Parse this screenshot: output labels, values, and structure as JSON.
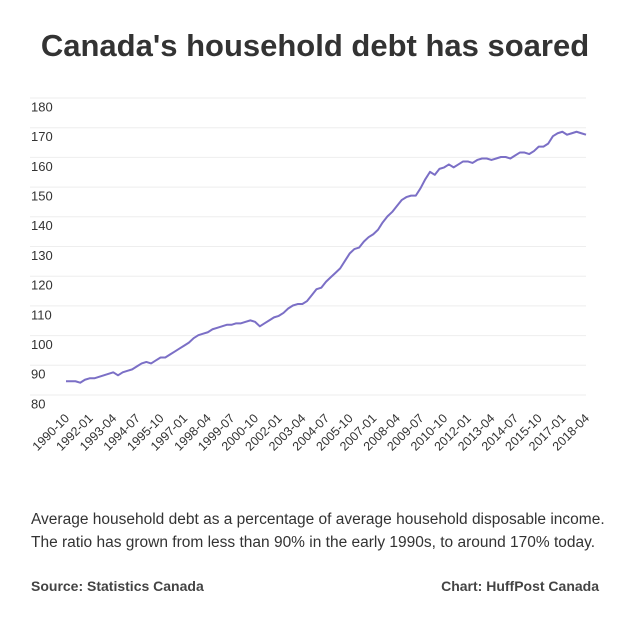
{
  "chart_data": {
    "type": "line",
    "title": "Canada's household debt has soared",
    "caption": "Average household debt as a percentage of average household disposable income. The ratio has grown from less than 90% in the early 1990s, to around 170% today.",
    "source": "Source: Statistics Canada",
    "credit": "Chart: HuffPost Canada",
    "categories": [
      "1990-10",
      null,
      null,
      null,
      null,
      "1992-01",
      null,
      null,
      null,
      null,
      "1993-04",
      null,
      null,
      null,
      null,
      "1994-07",
      null,
      null,
      null,
      null,
      "1995-10",
      null,
      null,
      null,
      null,
      "1997-01",
      null,
      null,
      null,
      null,
      "1998-04",
      null,
      null,
      null,
      null,
      "1999-07",
      null,
      null,
      null,
      null,
      "2000-10",
      null,
      null,
      null,
      null,
      "2002-01",
      null,
      null,
      null,
      null,
      "2003-04",
      null,
      null,
      null,
      null,
      "2004-07",
      null,
      null,
      null,
      null,
      "2005-10",
      null,
      null,
      null,
      null,
      "2007-01",
      null,
      null,
      null,
      null,
      "2008-04",
      null,
      null,
      null,
      null,
      "2009-07",
      null,
      null,
      null,
      null,
      "2010-10",
      null,
      null,
      null,
      null,
      "2012-01",
      null,
      null,
      null,
      null,
      "2013-04",
      null,
      null,
      null,
      null,
      "2014-07",
      null,
      null,
      null,
      null,
      "2015-10",
      null,
      null,
      null,
      null,
      "2017-01",
      null,
      null,
      null,
      null,
      "2018-04"
    ],
    "values": [
      88,
      88,
      88,
      87.5,
      88.5,
      89,
      89,
      89.5,
      90,
      90.5,
      91,
      90,
      91,
      91.5,
      92,
      93,
      94,
      94.5,
      94,
      95,
      96,
      96,
      97,
      98,
      99,
      100,
      101,
      102.5,
      103.5,
      104,
      104.5,
      105.5,
      106,
      106.5,
      107,
      107,
      107.5,
      107.5,
      108,
      108.5,
      108,
      106.5,
      107.5,
      108.5,
      109.5,
      110,
      111,
      112.5,
      113.5,
      114,
      114,
      115,
      117,
      119,
      119.5,
      121.5,
      123,
      124.5,
      126,
      128.5,
      131,
      132.5,
      133,
      135,
      136.5,
      137.5,
      139,
      141.5,
      143.5,
      145,
      147,
      149,
      150,
      150.5,
      150.5,
      153,
      156,
      158.5,
      157.5,
      159.5,
      160,
      161,
      160,
      161,
      162,
      162,
      161.5,
      162.5,
      163,
      163,
      162.5,
      163,
      163.5,
      163.5,
      163,
      164,
      165,
      165,
      164.5,
      165.5,
      167,
      167,
      168,
      170.5,
      171.5,
      172,
      171,
      171.5,
      172,
      171.5,
      171
    ],
    "color": "#7b6fc6",
    "ylim": [
      80,
      180
    ],
    "yticks": [
      80,
      90,
      100,
      110,
      120,
      130,
      140,
      150,
      160,
      170,
      180
    ],
    "grid": true
  }
}
